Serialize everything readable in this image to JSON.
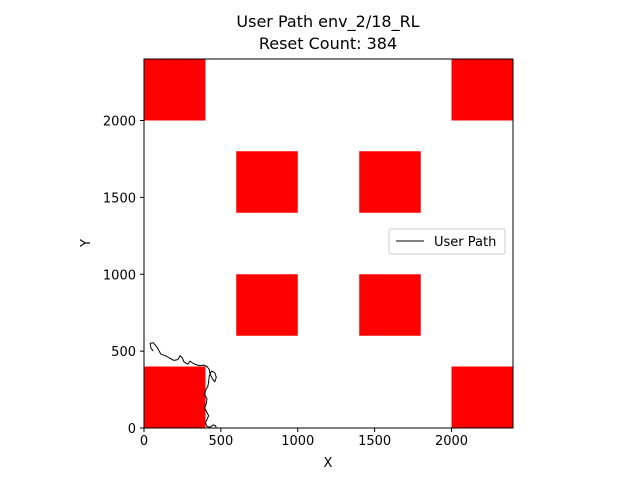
{
  "chart_data": {
    "type": "line",
    "title": "User Path env_2/18_RL",
    "subtitle": "Reset Count: 384",
    "xlabel": "X",
    "ylabel": "Y",
    "xlim": [
      0,
      2400
    ],
    "ylim": [
      0,
      2400
    ],
    "xticks": [
      0,
      500,
      1000,
      1500,
      2000
    ],
    "yticks": [
      0,
      500,
      1000,
      1500,
      2000
    ],
    "legend": {
      "position": "center-right",
      "entries": [
        "User Path"
      ]
    },
    "grid": false,
    "obstacle_color": "#ff0000",
    "obstacles": [
      {
        "x": [
          0,
          400
        ],
        "y": [
          2000,
          2400
        ]
      },
      {
        "x": [
          2000,
          2400
        ],
        "y": [
          2000,
          2400
        ]
      },
      {
        "x": [
          600,
          1000
        ],
        "y": [
          1400,
          1800
        ]
      },
      {
        "x": [
          1400,
          1800
        ],
        "y": [
          1400,
          1800
        ]
      },
      {
        "x": [
          600,
          1000
        ],
        "y": [
          600,
          1000
        ]
      },
      {
        "x": [
          1400,
          1800
        ],
        "y": [
          600,
          1000
        ]
      },
      {
        "x": [
          0,
          400
        ],
        "y": [
          0,
          400
        ]
      },
      {
        "x": [
          2000,
          2400
        ],
        "y": [
          0,
          400
        ]
      }
    ],
    "series": [
      {
        "name": "User Path",
        "color": "#000000",
        "points": [
          [
            60,
            500
          ],
          [
            45,
            520
          ],
          [
            40,
            550
          ],
          [
            60,
            555
          ],
          [
            85,
            525
          ],
          [
            110,
            480
          ],
          [
            140,
            470
          ],
          [
            165,
            455
          ],
          [
            195,
            440
          ],
          [
            220,
            445
          ],
          [
            235,
            470
          ],
          [
            250,
            455
          ],
          [
            260,
            430
          ],
          [
            285,
            415
          ],
          [
            300,
            435
          ],
          [
            320,
            420
          ],
          [
            345,
            410
          ],
          [
            365,
            405
          ],
          [
            385,
            410
          ],
          [
            410,
            400
          ],
          [
            425,
            380
          ],
          [
            430,
            350
          ],
          [
            445,
            320
          ],
          [
            460,
            300
          ],
          [
            470,
            330
          ],
          [
            460,
            360
          ],
          [
            440,
            370
          ],
          [
            425,
            340
          ],
          [
            420,
            300
          ],
          [
            415,
            270
          ],
          [
            400,
            245
          ],
          [
            395,
            215
          ],
          [
            410,
            190
          ],
          [
            405,
            160
          ],
          [
            395,
            130
          ],
          [
            410,
            100
          ],
          [
            420,
            80
          ],
          [
            410,
            55
          ],
          [
            400,
            35
          ],
          [
            410,
            10
          ],
          [
            430,
            5
          ],
          [
            450,
            20
          ],
          [
            465,
            15
          ],
          [
            470,
            0
          ]
        ]
      }
    ]
  }
}
